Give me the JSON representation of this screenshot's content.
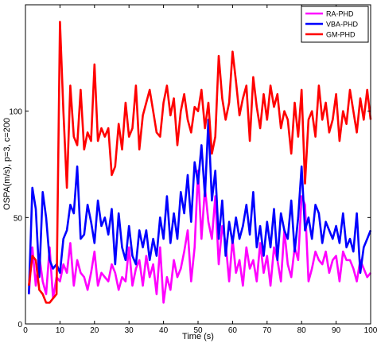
{
  "chart_data": {
    "type": "line",
    "title": "",
    "xlabel": "Time (s)",
    "ylabel": "OSPA(m/s), p=3, c=200",
    "xlim": [
      0,
      100
    ],
    "ylim": [
      0,
      150
    ],
    "xticks": [
      0,
      10,
      20,
      30,
      40,
      50,
      60,
      70,
      80,
      90,
      100
    ],
    "xtick_labels": [
      "0",
      "10",
      "20",
      "30",
      "40",
      "50",
      "60",
      "70",
      "80",
      "90",
      "100"
    ],
    "yticks": [
      0,
      50,
      100
    ],
    "ytick_labels": [
      "0",
      "50",
      "100"
    ],
    "grid": false,
    "legend_position": "top-right",
    "x": [
      1,
      2,
      3,
      4,
      5,
      6,
      7,
      8,
      9,
      10,
      11,
      12,
      13,
      14,
      15,
      16,
      17,
      18,
      19,
      20,
      21,
      22,
      23,
      24,
      25,
      26,
      27,
      28,
      29,
      30,
      31,
      32,
      33,
      34,
      35,
      36,
      37,
      38,
      39,
      40,
      41,
      42,
      43,
      44,
      45,
      46,
      47,
      48,
      49,
      50,
      51,
      52,
      53,
      54,
      55,
      56,
      57,
      58,
      59,
      60,
      61,
      62,
      63,
      64,
      65,
      66,
      67,
      68,
      69,
      70,
      71,
      72,
      73,
      74,
      75,
      76,
      77,
      78,
      79,
      80,
      81,
      82,
      83,
      84,
      85,
      86,
      87,
      88,
      89,
      90,
      91,
      92,
      93,
      94,
      95,
      96,
      97,
      98,
      99,
      100
    ],
    "series": [
      {
        "name": "RA-PHD",
        "color": "#ff00ff",
        "values": [
          14,
          36,
          18,
          32,
          20,
          14,
          36,
          12,
          22,
          20,
          28,
          24,
          38,
          18,
          30,
          24,
          22,
          16,
          24,
          34,
          18,
          24,
          22,
          20,
          28,
          24,
          16,
          22,
          20,
          36,
          18,
          26,
          30,
          18,
          32,
          22,
          28,
          14,
          36,
          10,
          22,
          16,
          30,
          22,
          26,
          34,
          44,
          20,
          36,
          72,
          40,
          64,
          48,
          40,
          60,
          28,
          46,
          38,
          20,
          40,
          24,
          30,
          18,
          36,
          26,
          30,
          20,
          38,
          24,
          32,
          18,
          36,
          30,
          20,
          44,
          28,
          22,
          36,
          30,
          60,
          56,
          20,
          26,
          34,
          30,
          28,
          34,
          24,
          30,
          32,
          20,
          34,
          30,
          30,
          26,
          20,
          30,
          26,
          22,
          24
        ]
      },
      {
        "name": "VBA-PHD",
        "color": "#0000ff",
        "values": [
          14,
          64,
          54,
          22,
          62,
          50,
          30,
          26,
          28,
          24,
          40,
          44,
          56,
          52,
          74,
          40,
          42,
          56,
          48,
          38,
          58,
          46,
          50,
          42,
          54,
          28,
          52,
          36,
          30,
          46,
          32,
          28,
          44,
          36,
          44,
          30,
          40,
          32,
          50,
          40,
          60,
          38,
          52,
          40,
          62,
          52,
          70,
          48,
          76,
          66,
          84,
          60,
          96,
          58,
          72,
          40,
          58,
          32,
          48,
          38,
          50,
          40,
          46,
          56,
          42,
          62,
          36,
          46,
          32,
          48,
          36,
          54,
          30,
          52,
          44,
          40,
          58,
          34,
          50,
          74,
          44,
          50,
          40,
          56,
          52,
          38,
          48,
          44,
          40,
          46,
          38,
          52,
          36,
          40,
          34,
          52,
          24,
          36,
          40,
          44
        ]
      },
      {
        "name": "GM-PHD",
        "color": "#ff0000",
        "values": [
          18,
          32,
          30,
          16,
          14,
          10,
          10,
          12,
          14,
          142,
          100,
          64,
          112,
          88,
          84,
          110,
          82,
          90,
          86,
          122,
          86,
          92,
          88,
          92,
          70,
          74,
          94,
          82,
          104,
          88,
          92,
          112,
          82,
          98,
          104,
          110,
          100,
          90,
          88,
          104,
          112,
          98,
          106,
          84,
          100,
          108,
          96,
          90,
          102,
          100,
          110,
          92,
          104,
          80,
          88,
          126,
          106,
          96,
          104,
          128,
          114,
          98,
          106,
          112,
          86,
          116,
          102,
          92,
          108,
          96,
          112,
          102,
          108,
          92,
          100,
          96,
          80,
          104,
          88,
          110,
          66,
          96,
          100,
          88,
          112,
          96,
          104,
          90,
          96,
          108,
          86,
          100,
          94,
          110,
          100,
          90,
          106,
          96,
          110,
          96
        ]
      }
    ]
  }
}
